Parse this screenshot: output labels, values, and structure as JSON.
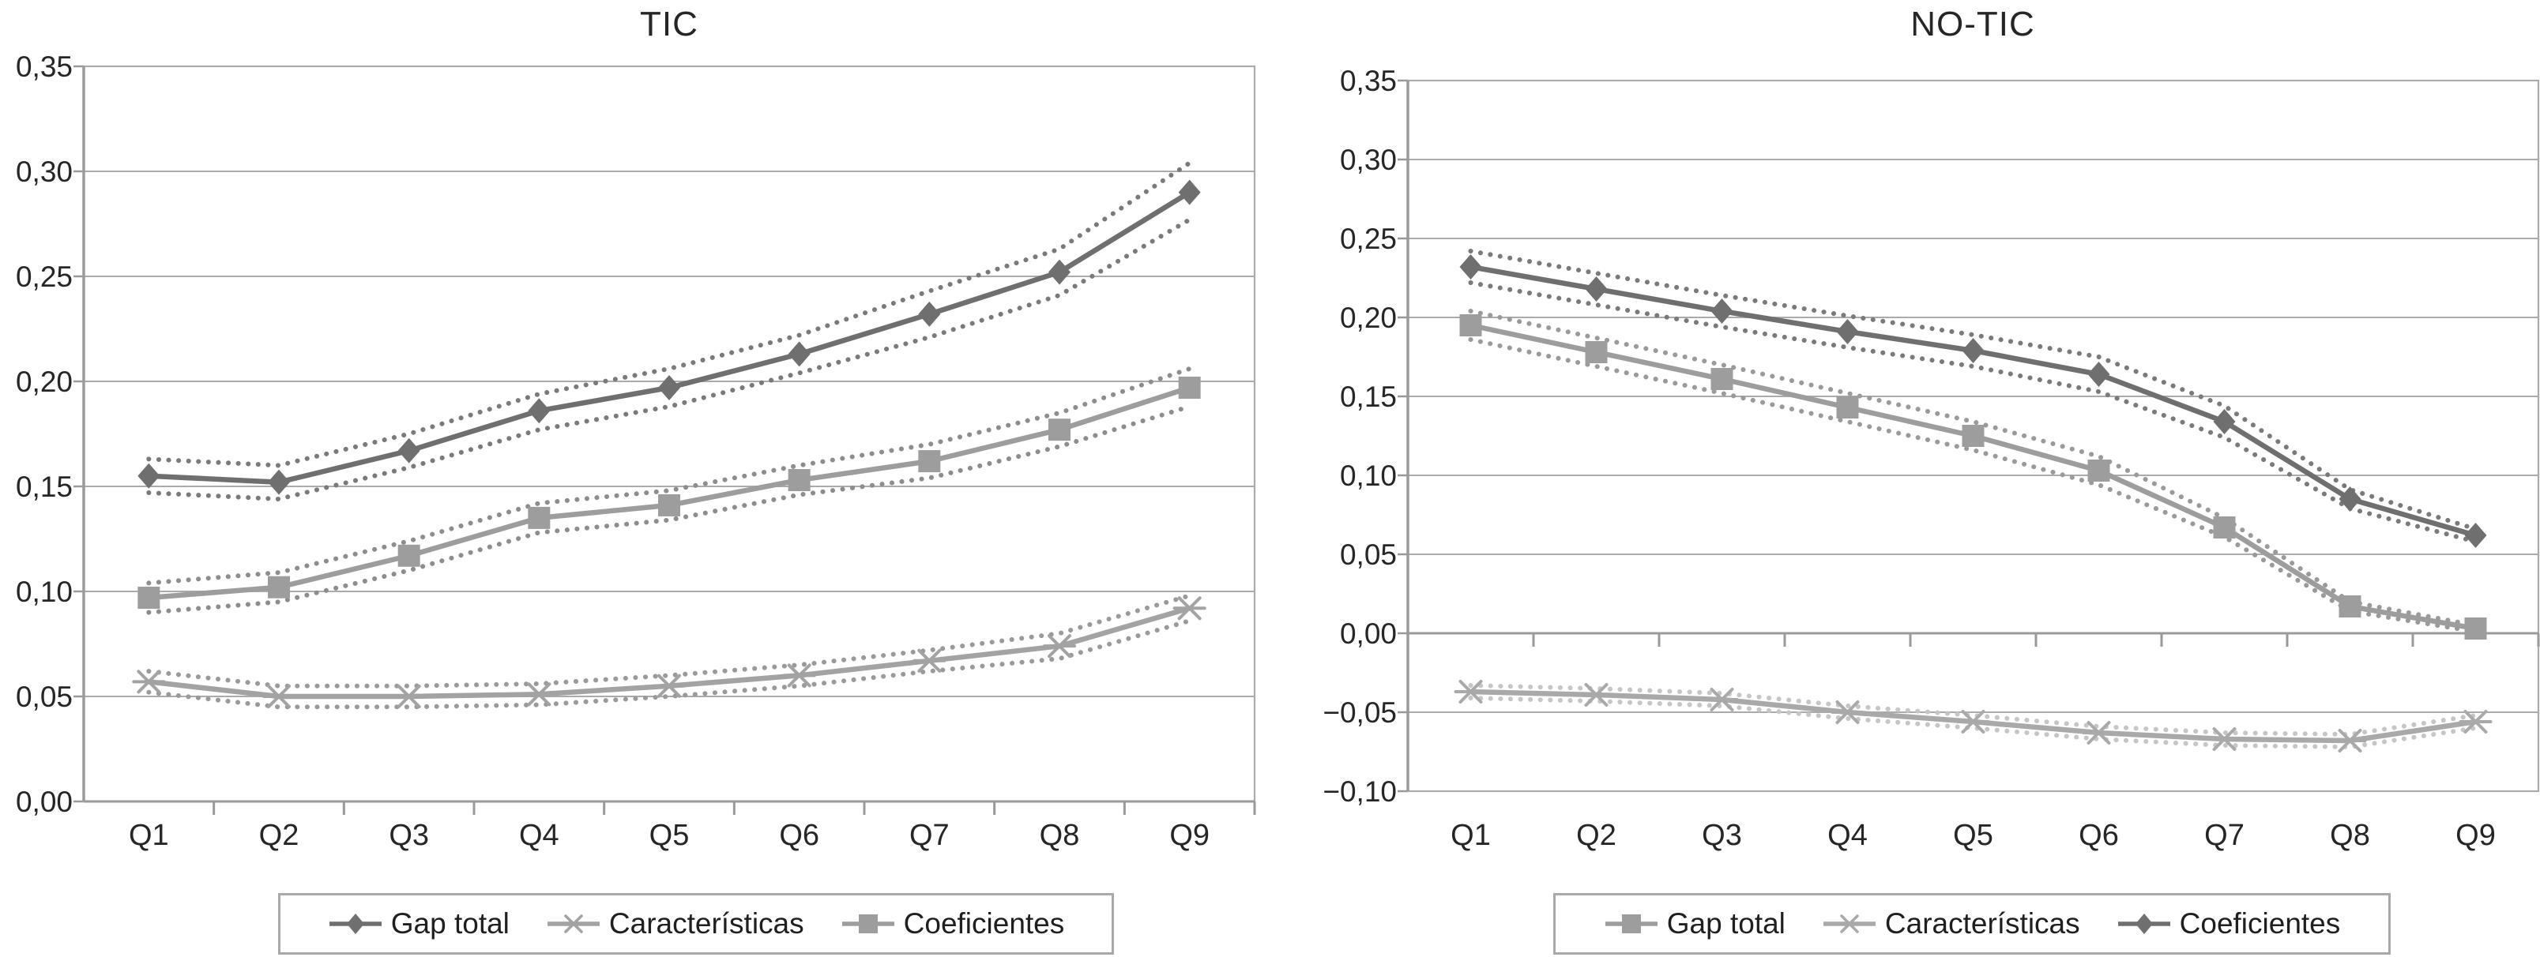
{
  "page": {
    "background_color": "#ffffff",
    "text_color": "#262626",
    "grid_color": "#ababab",
    "axis_color": "#9a9a9a"
  },
  "chart_data": [
    {
      "type": "line",
      "title": "TIC",
      "categories": [
        "Q1",
        "Q2",
        "Q3",
        "Q4",
        "Q5",
        "Q6",
        "Q7",
        "Q8",
        "Q9"
      ],
      "xlabel": "",
      "ylabel": "",
      "ylim": [
        0.0,
        0.35
      ],
      "y_step": 0.05,
      "y_tick_labels": [
        "0,00",
        "0,05",
        "0,10",
        "0,15",
        "0,20",
        "0,25",
        "0,30",
        "0,35"
      ],
      "decimal_separator": "comma",
      "grid": true,
      "legend_position": "bottom",
      "series": [
        {
          "name": "Gap total",
          "marker": "diamond",
          "color": "#6f6f6f",
          "band_color": "#7a7a7a",
          "values": [
            0.155,
            0.152,
            0.167,
            0.186,
            0.197,
            0.213,
            0.232,
            0.252,
            0.29
          ],
          "band_upper": [
            0.163,
            0.16,
            0.175,
            0.194,
            0.206,
            0.222,
            0.243,
            0.263,
            0.304
          ],
          "band_lower": [
            0.147,
            0.144,
            0.159,
            0.177,
            0.188,
            0.204,
            0.221,
            0.241,
            0.277
          ]
        },
        {
          "name": "Características",
          "marker": "asterisk",
          "color": "#a3a3a3",
          "band_color": "#9a9a9a",
          "values": [
            0.057,
            0.05,
            0.05,
            0.051,
            0.055,
            0.06,
            0.067,
            0.074,
            0.092
          ],
          "band_upper": [
            0.062,
            0.055,
            0.055,
            0.056,
            0.06,
            0.065,
            0.072,
            0.08,
            0.098
          ],
          "band_lower": [
            0.052,
            0.045,
            0.045,
            0.046,
            0.05,
            0.055,
            0.062,
            0.068,
            0.086
          ]
        },
        {
          "name": "Coeficientes",
          "marker": "square",
          "color": "#9d9d9d",
          "band_color": "#8d8d8d",
          "values": [
            0.097,
            0.102,
            0.117,
            0.135,
            0.141,
            0.153,
            0.162,
            0.177,
            0.197
          ],
          "band_upper": [
            0.104,
            0.109,
            0.124,
            0.142,
            0.148,
            0.16,
            0.17,
            0.185,
            0.206
          ],
          "band_lower": [
            0.09,
            0.095,
            0.11,
            0.128,
            0.134,
            0.146,
            0.154,
            0.169,
            0.188
          ]
        }
      ]
    },
    {
      "type": "line",
      "title": "NO-TIC",
      "categories": [
        "Q1",
        "Q2",
        "Q3",
        "Q4",
        "Q5",
        "Q6",
        "Q7",
        "Q8",
        "Q9"
      ],
      "xlabel": "",
      "ylabel": "",
      "ylim": [
        -0.1,
        0.35
      ],
      "y_step": 0.05,
      "y_tick_labels": [
        "−0,10",
        "−0,05",
        "0,00",
        "0,05",
        "0,10",
        "0,15",
        "0,20",
        "0,25",
        "0,30",
        "0,35"
      ],
      "decimal_separator": "comma",
      "grid": true,
      "legend_position": "bottom",
      "series": [
        {
          "name": "Gap total",
          "marker": "square",
          "color": "#9d9d9d",
          "band_color": "#9a9a9a",
          "values": [
            0.195,
            0.178,
            0.161,
            0.143,
            0.125,
            0.103,
            0.067,
            0.017,
            0.003
          ],
          "band_upper": [
            0.204,
            0.187,
            0.17,
            0.152,
            0.134,
            0.112,
            0.073,
            0.02,
            0.005
          ],
          "band_lower": [
            0.186,
            0.169,
            0.152,
            0.134,
            0.116,
            0.094,
            0.061,
            0.014,
            0.001
          ]
        },
        {
          "name": "Características",
          "marker": "asterisk",
          "color": "#a9a9a9",
          "band_color": "#c6c6c6",
          "values": [
            -0.037,
            -0.039,
            -0.042,
            -0.05,
            -0.056,
            -0.063,
            -0.067,
            -0.068,
            -0.056
          ],
          "band_upper": [
            -0.033,
            -0.035,
            -0.038,
            -0.046,
            -0.052,
            -0.059,
            -0.063,
            -0.064,
            -0.052
          ],
          "band_lower": [
            -0.041,
            -0.043,
            -0.046,
            -0.054,
            -0.06,
            -0.067,
            -0.071,
            -0.072,
            -0.06
          ]
        },
        {
          "name": "Coeficientes",
          "marker": "diamond",
          "color": "#6f6f6f",
          "band_color": "#7a7a7a",
          "values": [
            0.232,
            0.218,
            0.204,
            0.191,
            0.179,
            0.164,
            0.134,
            0.085,
            0.062
          ],
          "band_upper": [
            0.242,
            0.228,
            0.214,
            0.201,
            0.189,
            0.175,
            0.144,
            0.091,
            0.066
          ],
          "band_lower": [
            0.222,
            0.208,
            0.194,
            0.181,
            0.169,
            0.153,
            0.124,
            0.079,
            0.058
          ]
        }
      ]
    }
  ]
}
